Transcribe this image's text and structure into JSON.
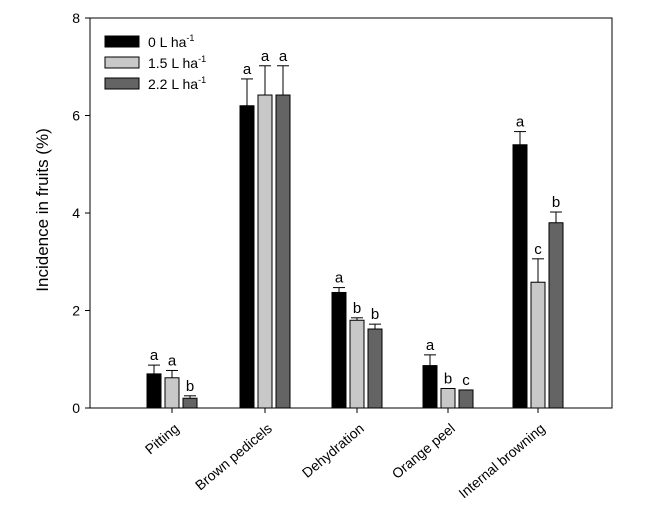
{
  "chart_data": {
    "type": "bar",
    "title": "",
    "xlabel": "",
    "ylabel": "Incidence in fruits (%)",
    "ylim": [
      0,
      8
    ],
    "yticks": [
      0,
      2,
      4,
      6,
      8
    ],
    "grid": false,
    "legend_position": "top-left",
    "categories": [
      "Pitting",
      "Brown pedicels",
      "Dehydration",
      "Orange peel",
      "Internal browning"
    ],
    "series": [
      {
        "name": "0 L ha",
        "name_superscript": "-1",
        "color": "#000000",
        "values": [
          0.7,
          6.2,
          2.37,
          0.87,
          5.4
        ],
        "errors": [
          0.18,
          0.55,
          0.1,
          0.22,
          0.27
        ],
        "letters": [
          "a",
          "a",
          "a",
          "a",
          "a"
        ]
      },
      {
        "name": "1.5 L ha",
        "name_superscript": "-1",
        "color": "#c8c8c8",
        "values": [
          0.62,
          6.42,
          1.8,
          0.4,
          2.58
        ],
        "errors": [
          0.15,
          0.6,
          0.05,
          0.0,
          0.48
        ],
        "letters": [
          "a",
          "a",
          "b",
          "b",
          "c"
        ]
      },
      {
        "name": "2.2 L ha",
        "name_superscript": "-1",
        "color": "#646464",
        "values": [
          0.2,
          6.42,
          1.62,
          0.37,
          3.8
        ],
        "errors": [
          0.05,
          0.6,
          0.1,
          0.0,
          0.22
        ],
        "letters": [
          "b",
          "a",
          "b",
          "c",
          "b"
        ]
      }
    ]
  }
}
